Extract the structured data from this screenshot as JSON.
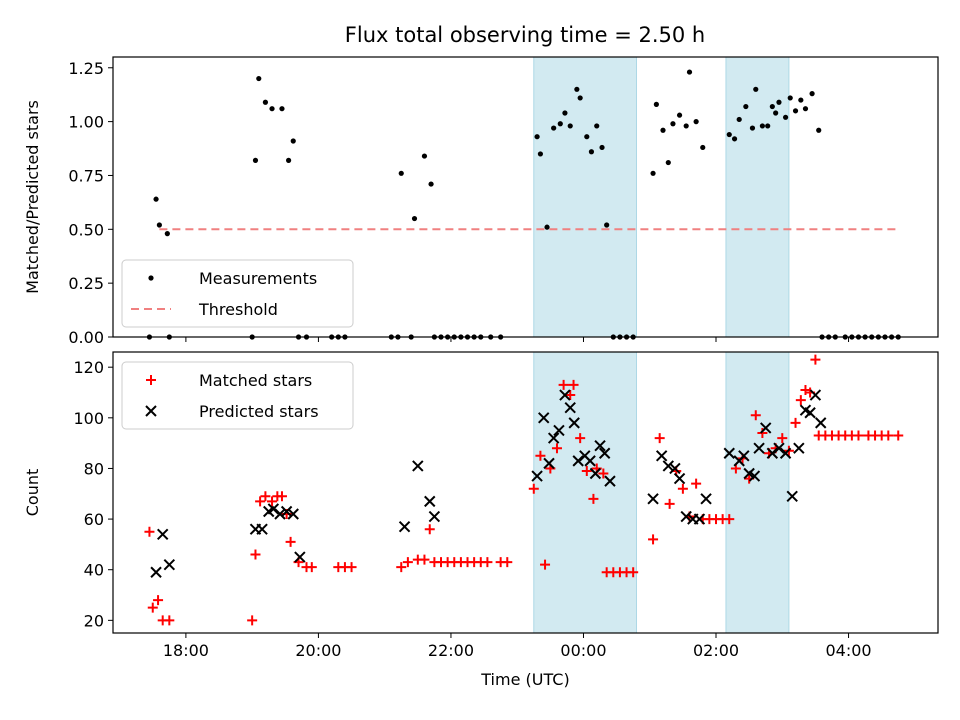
{
  "title": "Flux total observing time = 2.50 h",
  "colors": {
    "measurement": "#000000",
    "threshold": "#f08080",
    "matched": "#ff0000",
    "predicted": "#000000",
    "shade": "#add8e6"
  },
  "chart_data": [
    {
      "type": "scatter",
      "title": "Flux total observing time = 2.50 h",
      "ylabel": "Matched/Predicted stars",
      "xlabel": "",
      "xlim": [
        16.9,
        29.35
      ],
      "ylim": [
        0,
        1.3
      ],
      "x_ticks": [
        18,
        20,
        22,
        24,
        26,
        28
      ],
      "x_tick_labels": [
        "",
        "",
        "",
        "",
        "",
        ""
      ],
      "y_ticks": [
        0,
        0.25,
        0.5,
        0.75,
        1.0,
        1.25
      ],
      "y_tick_labels": [
        "0.00",
        "0.25",
        "0.50",
        "0.75",
        "1.00",
        "1.25"
      ],
      "legend": {
        "position": "lower-left",
        "entries": [
          "Measurements",
          "Threshold"
        ]
      },
      "shaded_regions": [
        [
          23.25,
          24.8
        ],
        [
          26.15,
          27.1
        ]
      ],
      "threshold": {
        "name": "Threshold",
        "x": [
          17.6,
          28.75
        ],
        "y": 0.5
      },
      "series": [
        {
          "name": "Measurements",
          "points": [
            [
              17.45,
              0.0
            ],
            [
              17.55,
              0.64
            ],
            [
              17.6,
              0.52
            ],
            [
              17.72,
              0.48
            ],
            [
              17.75,
              0.0
            ],
            [
              19.0,
              0.0
            ],
            [
              19.05,
              0.82
            ],
            [
              19.1,
              1.2
            ],
            [
              19.2,
              1.09
            ],
            [
              19.3,
              1.06
            ],
            [
              19.45,
              1.06
            ],
            [
              19.55,
              0.82
            ],
            [
              19.62,
              0.91
            ],
            [
              19.7,
              0.0
            ],
            [
              19.82,
              0.0
            ],
            [
              20.2,
              0.0
            ],
            [
              20.3,
              0.0
            ],
            [
              20.4,
              0.0
            ],
            [
              21.1,
              0.0
            ],
            [
              21.2,
              0.0
            ],
            [
              21.25,
              0.76
            ],
            [
              21.4,
              0.0
            ],
            [
              21.45,
              0.55
            ],
            [
              21.6,
              0.84
            ],
            [
              21.7,
              0.71
            ],
            [
              21.75,
              0.0
            ],
            [
              21.85,
              0.0
            ],
            [
              21.95,
              0.0
            ],
            [
              22.05,
              0.0
            ],
            [
              22.15,
              0.0
            ],
            [
              22.25,
              0.0
            ],
            [
              22.35,
              0.0
            ],
            [
              22.45,
              0.0
            ],
            [
              22.6,
              0.0
            ],
            [
              22.75,
              0.0
            ],
            [
              23.3,
              0.93
            ],
            [
              23.35,
              0.85
            ],
            [
              23.45,
              0.51
            ],
            [
              23.55,
              0.97
            ],
            [
              23.65,
              0.99
            ],
            [
              23.72,
              1.04
            ],
            [
              23.8,
              0.98
            ],
            [
              23.9,
              1.15
            ],
            [
              23.95,
              1.11
            ],
            [
              24.05,
              0.93
            ],
            [
              24.12,
              0.86
            ],
            [
              24.2,
              0.98
            ],
            [
              24.28,
              0.88
            ],
            [
              24.35,
              0.52
            ],
            [
              24.45,
              0.0
            ],
            [
              24.55,
              0.0
            ],
            [
              24.65,
              0.0
            ],
            [
              24.75,
              0.0
            ],
            [
              25.05,
              0.76
            ],
            [
              25.1,
              1.08
            ],
            [
              25.2,
              0.96
            ],
            [
              25.28,
              0.81
            ],
            [
              25.35,
              0.99
            ],
            [
              25.45,
              1.03
            ],
            [
              25.55,
              0.98
            ],
            [
              25.6,
              1.23
            ],
            [
              25.7,
              1.0
            ],
            [
              25.8,
              0.88
            ],
            [
              26.2,
              0.94
            ],
            [
              26.28,
              0.92
            ],
            [
              26.35,
              1.01
            ],
            [
              26.45,
              1.07
            ],
            [
              26.55,
              0.97
            ],
            [
              26.6,
              1.15
            ],
            [
              26.7,
              0.98
            ],
            [
              26.78,
              0.98
            ],
            [
              26.85,
              1.07
            ],
            [
              26.9,
              1.04
            ],
            [
              26.95,
              1.09
            ],
            [
              27.05,
              1.02
            ],
            [
              27.12,
              1.11
            ],
            [
              27.2,
              1.05
            ],
            [
              27.28,
              1.1
            ],
            [
              27.35,
              1.06
            ],
            [
              27.45,
              1.13
            ],
            [
              27.55,
              0.96
            ],
            [
              27.6,
              0.0
            ],
            [
              27.7,
              0.0
            ],
            [
              27.8,
              0.0
            ],
            [
              27.95,
              0.0
            ],
            [
              28.05,
              0.0
            ],
            [
              28.15,
              0.0
            ],
            [
              28.25,
              0.0
            ],
            [
              28.35,
              0.0
            ],
            [
              28.45,
              0.0
            ],
            [
              28.55,
              0.0
            ],
            [
              28.65,
              0.0
            ],
            [
              28.75,
              0.0
            ]
          ]
        }
      ]
    },
    {
      "type": "scatter",
      "title": "",
      "xlabel": "Time (UTC)",
      "ylabel": "Count",
      "xlim": [
        16.9,
        29.35
      ],
      "ylim": [
        15,
        126
      ],
      "x_ticks": [
        18,
        20,
        22,
        24,
        26,
        28
      ],
      "x_tick_labels": [
        "18:00",
        "20:00",
        "22:00",
        "00:00",
        "02:00",
        "04:00"
      ],
      "y_ticks": [
        20,
        40,
        60,
        80,
        100,
        120
      ],
      "y_tick_labels": [
        "20",
        "40",
        "60",
        "80",
        "100",
        "120"
      ],
      "legend": {
        "position": "top-left",
        "entries": [
          "Matched stars",
          "Predicted stars"
        ]
      },
      "shaded_regions": [
        [
          23.25,
          24.8
        ],
        [
          26.15,
          27.1
        ]
      ],
      "series": [
        {
          "name": "Matched stars",
          "marker": "plus",
          "points": [
            [
              17.45,
              55
            ],
            [
              17.5,
              25
            ],
            [
              17.58,
              28
            ],
            [
              17.65,
              20
            ],
            [
              17.75,
              20
            ],
            [
              19.0,
              20
            ],
            [
              19.05,
              46
            ],
            [
              19.12,
              67
            ],
            [
              19.2,
              69
            ],
            [
              19.3,
              67
            ],
            [
              19.38,
              69
            ],
            [
              19.45,
              69
            ],
            [
              19.52,
              62
            ],
            [
              19.58,
              51
            ],
            [
              19.7,
              43
            ],
            [
              19.82,
              41
            ],
            [
              19.9,
              41
            ],
            [
              20.3,
              41
            ],
            [
              20.4,
              41
            ],
            [
              20.5,
              41
            ],
            [
              21.25,
              41
            ],
            [
              21.35,
              43
            ],
            [
              21.5,
              44
            ],
            [
              21.6,
              44
            ],
            [
              21.68,
              56
            ],
            [
              21.75,
              43
            ],
            [
              21.85,
              43
            ],
            [
              21.95,
              43
            ],
            [
              22.05,
              43
            ],
            [
              22.15,
              43
            ],
            [
              22.25,
              43
            ],
            [
              22.35,
              43
            ],
            [
              22.45,
              43
            ],
            [
              22.55,
              43
            ],
            [
              22.75,
              43
            ],
            [
              22.85,
              43
            ],
            [
              23.25,
              72
            ],
            [
              23.35,
              85
            ],
            [
              23.42,
              42
            ],
            [
              23.5,
              80
            ],
            [
              23.6,
              88
            ],
            [
              23.7,
              113
            ],
            [
              23.8,
              109
            ],
            [
              23.85,
              113
            ],
            [
              23.95,
              92
            ],
            [
              24.05,
              79
            ],
            [
              24.15,
              68
            ],
            [
              24.2,
              80
            ],
            [
              24.3,
              78
            ],
            [
              24.35,
              39
            ],
            [
              24.45,
              39
            ],
            [
              24.55,
              39
            ],
            [
              24.65,
              39
            ],
            [
              24.75,
              39
            ],
            [
              25.05,
              52
            ],
            [
              25.15,
              92
            ],
            [
              25.3,
              66
            ],
            [
              25.4,
              79
            ],
            [
              25.5,
              72
            ],
            [
              25.6,
              61
            ],
            [
              25.7,
              74
            ],
            [
              25.8,
              60
            ],
            [
              25.9,
              60
            ],
            [
              26.0,
              60
            ],
            [
              26.1,
              60
            ],
            [
              26.2,
              60
            ],
            [
              26.3,
              80
            ],
            [
              26.4,
              84
            ],
            [
              26.5,
              76
            ],
            [
              26.6,
              101
            ],
            [
              26.7,
              94
            ],
            [
              26.8,
              86
            ],
            [
              26.9,
              88
            ],
            [
              27.0,
              92
            ],
            [
              27.1,
              87
            ],
            [
              27.2,
              98
            ],
            [
              27.28,
              107
            ],
            [
              27.35,
              111
            ],
            [
              27.42,
              110
            ],
            [
              27.5,
              123
            ],
            [
              27.55,
              93
            ],
            [
              27.65,
              93
            ],
            [
              27.75,
              93
            ],
            [
              27.85,
              93
            ],
            [
              27.95,
              93
            ],
            [
              28.05,
              93
            ],
            [
              28.15,
              93
            ],
            [
              28.3,
              93
            ],
            [
              28.4,
              93
            ],
            [
              28.5,
              93
            ],
            [
              28.6,
              93
            ],
            [
              28.75,
              93
            ]
          ]
        },
        {
          "name": "Predicted stars",
          "marker": "x",
          "points": [
            [
              17.55,
              39
            ],
            [
              17.65,
              54
            ],
            [
              17.75,
              42
            ],
            [
              19.05,
              56
            ],
            [
              19.15,
              56
            ],
            [
              19.25,
              63
            ],
            [
              19.32,
              64
            ],
            [
              19.42,
              62
            ],
            [
              19.52,
              63
            ],
            [
              19.62,
              62
            ],
            [
              19.72,
              45
            ],
            [
              21.3,
              57
            ],
            [
              21.5,
              81
            ],
            [
              21.68,
              67
            ],
            [
              21.75,
              61
            ],
            [
              23.3,
              77
            ],
            [
              23.4,
              100
            ],
            [
              23.48,
              82
            ],
            [
              23.55,
              92
            ],
            [
              23.63,
              95
            ],
            [
              23.72,
              109
            ],
            [
              23.8,
              104
            ],
            [
              23.86,
              98
            ],
            [
              23.92,
              83
            ],
            [
              24.02,
              85
            ],
            [
              24.1,
              83
            ],
            [
              24.18,
              78
            ],
            [
              24.25,
              89
            ],
            [
              24.32,
              86
            ],
            [
              24.4,
              75
            ],
            [
              25.05,
              68
            ],
            [
              25.18,
              85
            ],
            [
              25.28,
              81
            ],
            [
              25.38,
              80
            ],
            [
              25.45,
              76
            ],
            [
              25.55,
              61
            ],
            [
              25.65,
              60
            ],
            [
              25.75,
              60
            ],
            [
              25.85,
              68
            ],
            [
              26.2,
              86
            ],
            [
              26.35,
              83
            ],
            [
              26.42,
              85
            ],
            [
              26.5,
              78
            ],
            [
              26.58,
              77
            ],
            [
              26.65,
              88
            ],
            [
              26.75,
              96
            ],
            [
              26.85,
              86
            ],
            [
              26.95,
              88
            ],
            [
              27.05,
              86
            ],
            [
              27.15,
              69
            ],
            [
              27.25,
              88
            ],
            [
              27.35,
              103
            ],
            [
              27.42,
              102
            ],
            [
              27.5,
              109
            ],
            [
              27.58,
              98
            ]
          ]
        }
      ]
    }
  ]
}
